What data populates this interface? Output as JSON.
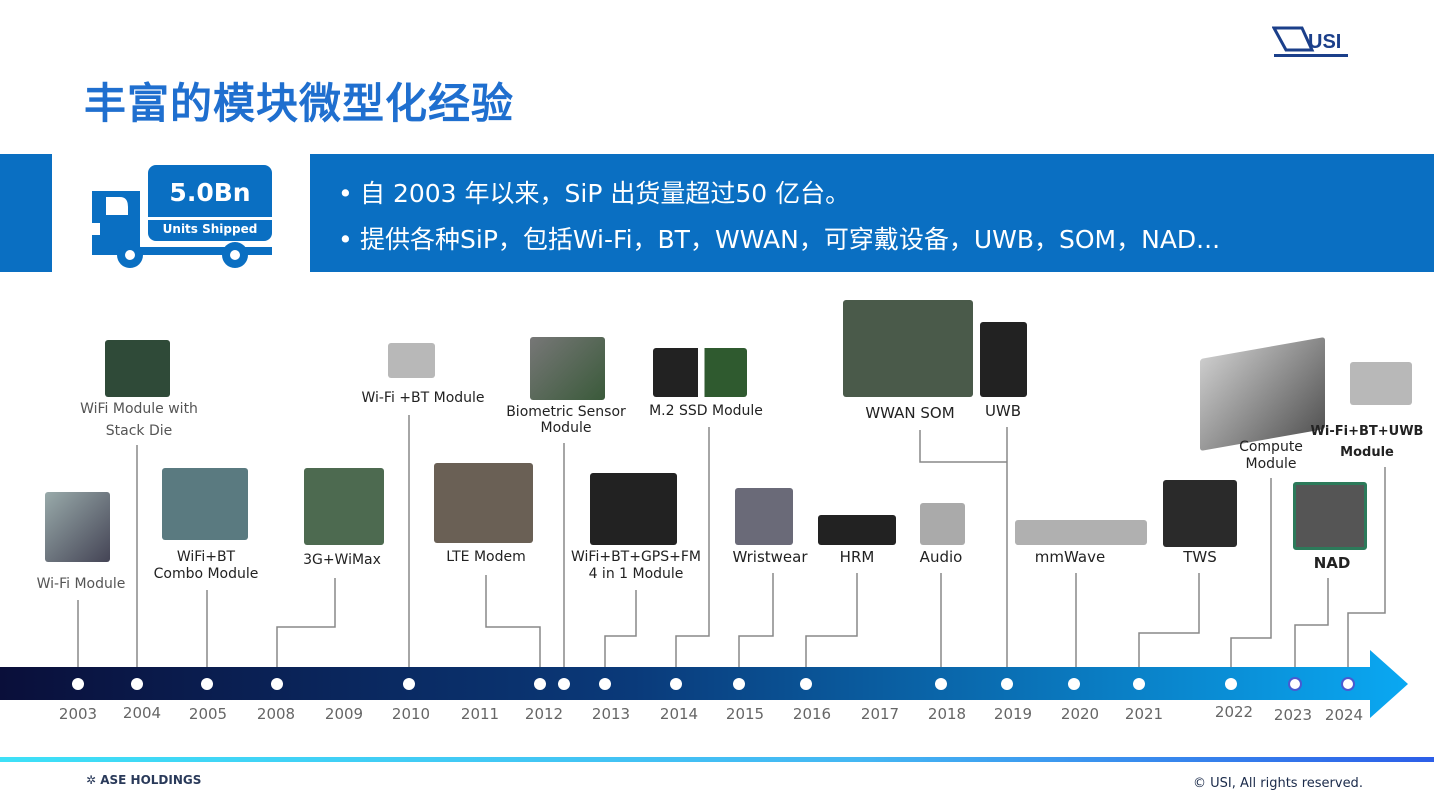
{
  "title": "丰富的模块微型化经验",
  "logo": "USI",
  "stat": {
    "value": "5.0Bn",
    "caption": "Units Shipped"
  },
  "bullets": [
    "自 2003 年以来，SiP 出货量超过50 亿台。",
    "提供各种SiP，包括Wi-Fi，BT，WWAN，可穿戴设备，UWB，SOM，NAD..."
  ],
  "milestones": [
    {
      "label": "Wi-Fi Module"
    },
    {
      "label": "WiFi Module with",
      "label2": "Stack Die"
    },
    {
      "label": "WiFi+BT",
      "label2": "Combo Module"
    },
    {
      "label": "3G+WiMax"
    },
    {
      "label": "Wi-Fi +BT Module"
    },
    {
      "label": "LTE Modem"
    },
    {
      "label": "Biometric Sensor",
      "label2": "Module"
    },
    {
      "label": "WiFi+BT+GPS+FM",
      "label2": "4 in 1 Module"
    },
    {
      "label": "M.2 SSD Module"
    },
    {
      "label": "Wristwear"
    },
    {
      "label": "HRM"
    },
    {
      "label": "Audio"
    },
    {
      "label": "WWAN SOM"
    },
    {
      "label": "UWB"
    },
    {
      "label": "mmWave"
    },
    {
      "label": "TWS"
    },
    {
      "label": "Compute",
      "label2": "Module"
    },
    {
      "label": "NAD"
    },
    {
      "label": "Wi-Fi+BT+UWB",
      "label2": "Module"
    }
  ],
  "years": [
    "2003",
    "2004",
    "2005",
    "2008",
    "2009",
    "2010",
    "2011",
    "2012",
    "2013",
    "2014",
    "2015",
    "2016",
    "2017",
    "2018",
    "2019",
    "2020",
    "2021",
    "2022",
    "2023",
    "2024"
  ],
  "footer": {
    "company": "ASE HOLDINGS",
    "copyright": "© USI, All rights reserved."
  },
  "colors": {
    "brand": "#0a6fc2",
    "title": "#1f6fcf",
    "arrow_start": "#0a0f3a",
    "arrow_end": "#0aa0ee"
  }
}
